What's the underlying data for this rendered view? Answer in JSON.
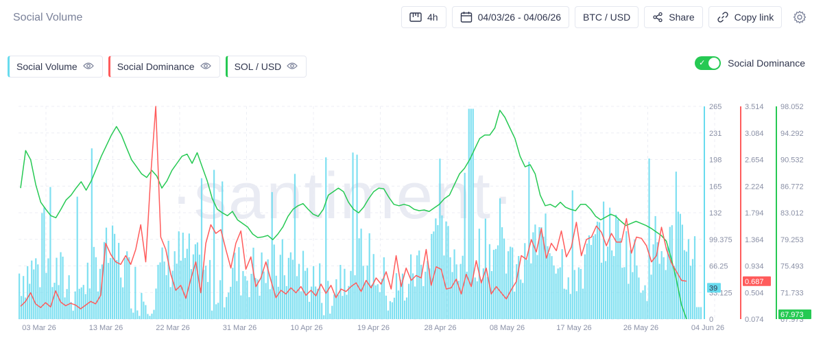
{
  "header": {
    "title": "Social Volume"
  },
  "toolbar": {
    "interval": "4h",
    "date_range": "04/03/26 - 04/06/26",
    "pair": "BTC / USD",
    "share": "Share",
    "copy_link": "Copy link"
  },
  "legend": {
    "items": [
      {
        "label": "Social Volume",
        "color": "#68dbee"
      },
      {
        "label": "Social Dominance",
        "color": "#ff5b5b"
      },
      {
        "label": "SOL / USD",
        "color": "#26c953"
      }
    ]
  },
  "toggle": {
    "label": "Social Dominance",
    "on": true
  },
  "watermark": "·santiment·",
  "chart_data": {
    "type": "line",
    "x_ticks": [
      "03 Mar 26",
      "13 Mar 26",
      "22 Mar 26",
      "31 Mar 26",
      "10 Apr 26",
      "19 Apr 26",
      "28 Apr 26",
      "08 May 26",
      "17 May 26",
      "26 May 26",
      "04 Jun 26"
    ],
    "axes": {
      "social_volume": {
        "ticks": [
          "265",
          "231",
          "198",
          "165",
          "132",
          "99.375",
          "66.25",
          "33.125",
          "0"
        ],
        "ylim": [
          0,
          265
        ],
        "current": "39",
        "color": "#68dbee"
      },
      "social_dominance": {
        "ticks": [
          "3.514",
          "3.084",
          "2.654",
          "2.224",
          "1.794",
          "1.364",
          "0.934",
          "0.504",
          "0.074"
        ],
        "ylim": [
          0.074,
          3.514
        ],
        "current": "0.687",
        "color": "#ff5b5b"
      },
      "sol_usd": {
        "ticks": [
          "98.052",
          "94.292",
          "90.532",
          "86.772",
          "83.012",
          "79.253",
          "75.493",
          "71.733",
          "67.973"
        ],
        "ylim": [
          67.973,
          98.052
        ],
        "current": "67.973",
        "color": "#26c953"
      }
    },
    "series": [
      {
        "name": "SOL / USD",
        "type": "line",
        "axis": "sol_usd",
        "values": [
          86.5,
          91.8,
          90.5,
          87.0,
          84.5,
          83.5,
          82.6,
          82.3,
          83.5,
          84.8,
          85.5,
          86.5,
          87.4,
          86.2,
          87.5,
          89.2,
          91.0,
          92.5,
          94.0,
          95.2,
          94.0,
          92.2,
          90.5,
          89.5,
          88.5,
          88.0,
          89.0,
          88.2,
          86.5,
          87.5,
          89.0,
          90.0,
          91.0,
          91.3,
          90.0,
          91.5,
          89.5,
          87.5,
          85.0,
          83.5,
          83.0,
          82.6,
          83.2,
          82.0,
          81.5,
          81.0,
          80.0,
          79.5,
          79.6,
          79.8,
          79.2,
          80.0,
          81.0,
          82.5,
          83.5,
          84.0,
          84.3,
          83.5,
          82.8,
          82.5,
          83.5,
          85.5,
          86.0,
          86.5,
          86.0,
          84.5,
          83.5,
          83.0,
          83.8,
          85.0,
          86.0,
          86.5,
          86.4,
          85.2,
          84.2,
          84.0,
          84.2,
          84.0,
          83.5,
          83.3,
          83.4,
          83.2,
          83.7,
          84.2,
          85.0,
          85.5,
          87.0,
          88.5,
          89.3,
          90.5,
          92.0,
          93.5,
          94.0,
          94.0,
          95.0,
          97.5,
          96.5,
          95.0,
          93.5,
          91.0,
          89.5,
          89.8,
          88.5,
          85.5,
          84.0,
          84.2,
          83.8,
          84.5,
          83.8,
          83.5,
          83.3,
          84.2,
          84.2,
          83.5,
          82.5,
          82.0,
          82.4,
          82.8,
          82.5,
          81.8,
          81.2,
          81.5,
          81.8,
          81.5,
          81.2,
          80.8,
          80.3,
          79.8,
          79.0,
          76.5,
          73.5,
          70.0,
          67.973
        ]
      },
      {
        "name": "Social Dominance",
        "type": "line",
        "axis": "social_dominance",
        "values": [
          0.28,
          0.36,
          0.5,
          0.32,
          0.26,
          0.34,
          0.27,
          0.53,
          0.35,
          0.29,
          0.33,
          0.3,
          0.24,
          0.3,
          0.36,
          0.32,
          0.46,
          1.3,
          1.12,
          1.0,
          0.96,
          1.1,
          0.96,
          1.2,
          1.6,
          1.0,
          2.4,
          3.55,
          1.4,
          1.2,
          0.8,
          0.54,
          0.62,
          0.41,
          0.72,
          1.0,
          0.5,
          1.3,
          1.6,
          1.46,
          1.52,
          1.2,
          0.9,
          1.3,
          1.5,
          0.88,
          1.08,
          0.6,
          0.74,
          1.0,
          0.7,
          0.42,
          0.54,
          0.48,
          0.58,
          0.5,
          0.6,
          0.46,
          0.54,
          0.45,
          0.64,
          0.49,
          0.62,
          0.42,
          0.56,
          0.52,
          0.6,
          0.66,
          0.52,
          0.7,
          0.58,
          0.74,
          0.64,
          0.84,
          0.56,
          1.1,
          0.6,
          0.9,
          0.7,
          0.78,
          0.74,
          1.2,
          0.62,
          0.92,
          0.88,
          0.56,
          0.58,
          0.72,
          0.48,
          0.8,
          0.6,
          1.02,
          0.66,
          0.9,
          0.48,
          0.6,
          0.5,
          0.4,
          0.55,
          0.68,
          1.1,
          1.04,
          1.36,
          1.16,
          1.54,
          1.06,
          1.3,
          1.18,
          1.5,
          1.08,
          1.24,
          1.64,
          1.1,
          1.36,
          1.4,
          1.58,
          1.48,
          1.26,
          1.46,
          1.32,
          1.32,
          1.7,
          1.14,
          1.4,
          1.38,
          1.26,
          1.0,
          1.1,
          1.56,
          1.2,
          0.98,
          0.84,
          0.7,
          0.687
        ]
      }
    ]
  }
}
